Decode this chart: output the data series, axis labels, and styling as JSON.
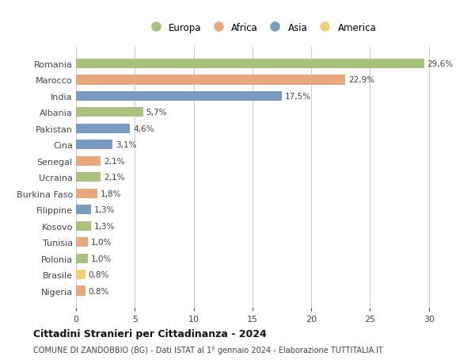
{
  "countries": [
    "Romania",
    "Marocco",
    "India",
    "Albania",
    "Pakistan",
    "Cina",
    "Senegal",
    "Ucraina",
    "Burkina Faso",
    "Filippine",
    "Kosovo",
    "Tunisia",
    "Polonia",
    "Brasile",
    "Nigeria"
  ],
  "values": [
    29.6,
    22.9,
    17.5,
    5.7,
    4.6,
    3.1,
    2.1,
    2.1,
    1.8,
    1.3,
    1.3,
    1.0,
    1.0,
    0.8,
    0.8
  ],
  "labels": [
    "29,6%",
    "22,9%",
    "17,5%",
    "5,7%",
    "4,6%",
    "3,1%",
    "2,1%",
    "2,1%",
    "1,8%",
    "1,3%",
    "1,3%",
    "1,0%",
    "1,0%",
    "0,8%",
    "0,8%"
  ],
  "continents": [
    "Europa",
    "Africa",
    "Asia",
    "Europa",
    "Asia",
    "Asia",
    "Africa",
    "Europa",
    "Africa",
    "Asia",
    "Europa",
    "Africa",
    "Europa",
    "America",
    "Africa"
  ],
  "continent_colors": {
    "Europa": "#a8c17c",
    "Africa": "#e8a87c",
    "Asia": "#7a9bbf",
    "America": "#f0d070"
  },
  "legend_order": [
    "Europa",
    "Africa",
    "Asia",
    "America"
  ],
  "title": "Cittadini Stranieri per Cittadinanza - 2024",
  "subtitle": "COMUNE DI ZANDOBBIO (BG) - Dati ISTAT al 1° gennaio 2024 - Elaborazione TUTTITALIA.IT",
  "xlim": [
    0,
    31.5
  ],
  "xticks": [
    0,
    5,
    10,
    15,
    20,
    25,
    30
  ],
  "bg_color": "#ffffff",
  "grid_color": "#cccccc",
  "bar_height": 0.6
}
